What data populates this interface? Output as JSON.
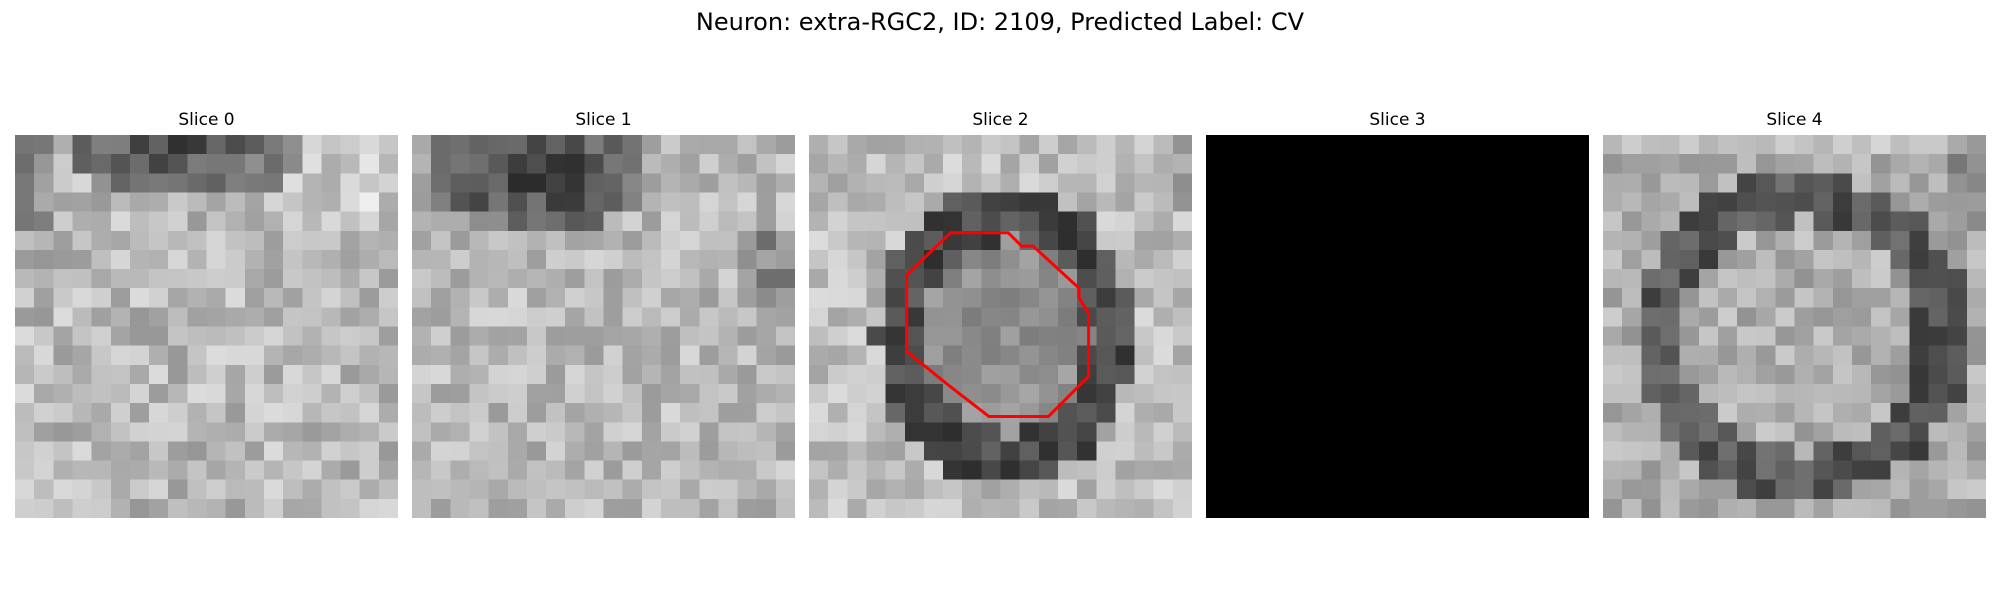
{
  "figure": {
    "title": "Neuron: extra-RGC2, ID: 2109, Predicted Label: CV"
  },
  "slices": [
    {
      "title": "Slice 0",
      "content": "em-texture-dark-top"
    },
    {
      "title": "Slice 1",
      "content": "em-texture-dark-top"
    },
    {
      "title": "Slice 2",
      "content": "em-texture-cell-with-contour"
    },
    {
      "title": "Slice 3",
      "content": "blank-black"
    },
    {
      "title": "Slice 4",
      "content": "em-texture-ring"
    }
  ],
  "colors": {
    "contour": "#ff0000",
    "background": "#ffffff",
    "blank_slice": "#000000"
  }
}
